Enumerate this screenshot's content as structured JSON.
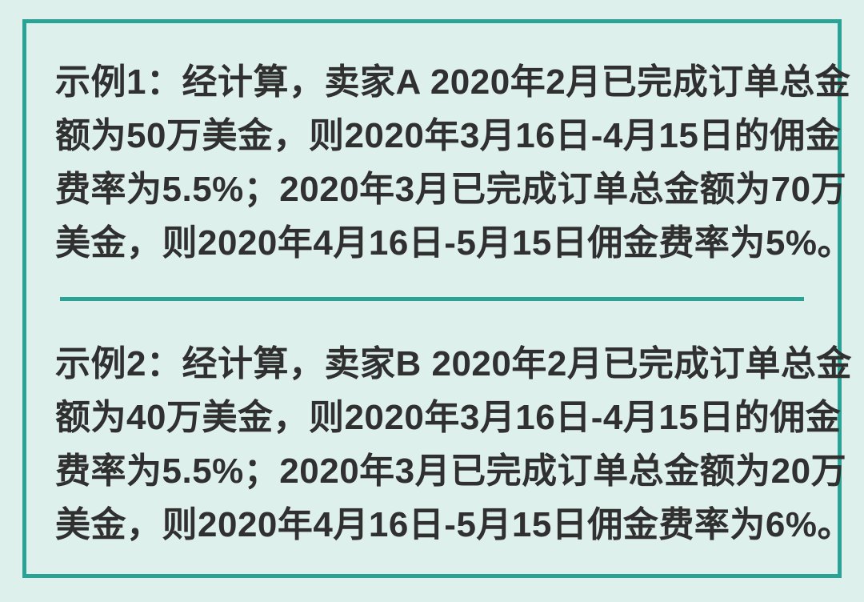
{
  "page": {
    "background_color": "#def0ec",
    "accent_color": "#2aa396",
    "text_color": "#303030"
  },
  "examples": [
    {
      "id": "示例1",
      "lines": [
        "示例1：经计算，卖家A 2020年2月已完成订单总金",
        "额为50万美金，则2020年3月16日-4月15日的佣金",
        "费率为5.5%；2020年3月已完成订单总金额为70万",
        "美金，则2020年4月16日-5月15日佣金费率为5%。"
      ]
    },
    {
      "id": "示例2",
      "lines": [
        "示例2：经计算，卖家B 2020年2月已完成订单总金",
        "额为40万美金，则2020年3月16日-4月15日的佣金",
        "费率为5.5%；2020年3月已完成订单总金额为20万",
        "美金，则2020年4月16日-5月15日佣金费率为6%。"
      ]
    }
  ]
}
